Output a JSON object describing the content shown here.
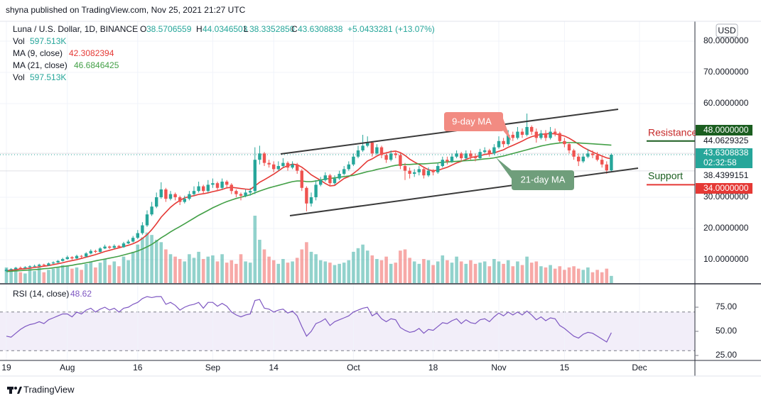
{
  "header": {
    "publisher": "shyna published on TradingView.com, Nov 25, 2021 21:27 UTC"
  },
  "footer": {
    "logo": "TradingView"
  },
  "chart_data": {
    "type": "candlestick",
    "title": "Luna / U.S. Dollar, 1D, BINANCE",
    "quote": [
      [
        "O",
        "38.5706559"
      ],
      [
        "H",
        "44.0346503"
      ],
      [
        "L",
        "38.3352850"
      ],
      [
        "C",
        "43.6308838"
      ]
    ],
    "change": "+5.0433281 (+13.07%)",
    "indicator_legend": [
      [
        "Vol",
        "597.513K"
      ],
      [
        "MA (9, close)",
        "42.3082394"
      ],
      [
        "MA (21, close)",
        "46.6846425"
      ],
      [
        "Vol",
        "597.513K"
      ]
    ],
    "currency": "USD",
    "up_color": "#26a69a",
    "down_color": "#ef5350",
    "grid": true,
    "xticks": [
      {
        "value": 0,
        "label": "19"
      },
      {
        "value": 13,
        "label": "Aug"
      },
      {
        "value": 28,
        "label": "16"
      },
      {
        "value": 44,
        "label": "Sep"
      },
      {
        "value": 57,
        "label": "14"
      },
      {
        "value": 74,
        "label": "Oct"
      },
      {
        "value": 91,
        "label": "18"
      },
      {
        "value": 105,
        "label": "Nov"
      },
      {
        "value": 119,
        "label": "15"
      },
      {
        "value": 135,
        "label": "Dec"
      }
    ],
    "ylim": [
      2.27,
      86.36
    ],
    "yticks": [
      {
        "value": 10,
        "label": "10.0000000"
      },
      {
        "value": 20,
        "label": "20.0000000"
      },
      {
        "value": 30,
        "label": "30.0000000"
      },
      {
        "value": 60,
        "label": "60.0000000"
      },
      {
        "value": 70,
        "label": "70.0000000"
      },
      {
        "value": 80,
        "label": "80.0000000"
      }
    ],
    "close": [
      6.8,
      7.0,
      7.4,
      7.3,
      7.6,
      7.9,
      8.0,
      8.4,
      8.2,
      8.8,
      9.1,
      9.6,
      10.2,
      10.8,
      10.4,
      11.2,
      11.0,
      12.0,
      12.8,
      12.5,
      13.6,
      14.2,
      13.8,
      14.4,
      14.0,
      15.2,
      15.8,
      17.0,
      18.5,
      21.0,
      24.5,
      27.0,
      30.0,
      32.5,
      29.5,
      31.0,
      30.0,
      28.5,
      29.5,
      31.0,
      32.0,
      33.5,
      32.0,
      34.0,
      34.5,
      33.0,
      35.0,
      34.0,
      32.0,
      31.0,
      30.5,
      31.5,
      32.0,
      42.0,
      44.0,
      41.0,
      40.5,
      39.0,
      40.0,
      41.0,
      39.5,
      40.5,
      38.5,
      33.0,
      28.0,
      30.0,
      34.0,
      35.5,
      37.0,
      34.5,
      36.0,
      37.5,
      39.0,
      40.5,
      43.0,
      45.0,
      46.5,
      47.5,
      44.0,
      46.0,
      43.5,
      42.0,
      44.0,
      43.5,
      40.0,
      38.5,
      37.5,
      38.0,
      39.0,
      37.0,
      38.5,
      38.0,
      40.0,
      42.0,
      41.5,
      43.0,
      44.0,
      42.5,
      44.0,
      43.0,
      42.5,
      44.5,
      45.0,
      44.0,
      46.0,
      48.0,
      47.0,
      50.0,
      49.0,
      51.0,
      50.0,
      52.5,
      51.0,
      49.0,
      50.5,
      49.0,
      51.0,
      50.5,
      48.0,
      47.0,
      45.0,
      43.0,
      41.5,
      43.0,
      44.0,
      43.5,
      42.0,
      40.5,
      38.6,
      43.6308838
    ],
    "high": [
      7.2,
      7.3,
      7.7,
      7.8,
      7.9,
      8.2,
      8.4,
      8.7,
      8.7,
      9.1,
      9.5,
      9.9,
      10.6,
      11.3,
      11.1,
      11.6,
      11.5,
      12.4,
      13.3,
      13.2,
      14.0,
      14.8,
      14.5,
      14.9,
      14.7,
      15.7,
      16.4,
      17.6,
      19.5,
      22.0,
      25.8,
      28.5,
      31.5,
      34.8,
      33.0,
      32.0,
      31.5,
      30.5,
      30.5,
      32.0,
      33.5,
      35.0,
      34.0,
      35.5,
      36.0,
      35.0,
      36.0,
      35.5,
      34.5,
      32.5,
      31.5,
      32.5,
      33.0,
      46.0,
      46.5,
      44.5,
      42.0,
      41.5,
      41.5,
      42.5,
      41.5,
      41.5,
      41.0,
      39.0,
      33.5,
      31.5,
      35.5,
      36.5,
      38.0,
      37.5,
      37.0,
      38.5,
      40.0,
      41.5,
      44.0,
      46.5,
      50.0,
      49.5,
      48.0,
      47.0,
      46.5,
      44.5,
      45.0,
      45.0,
      44.5,
      41.0,
      39.5,
      39.0,
      40.0,
      39.5,
      39.5,
      39.0,
      41.0,
      43.0,
      43.0,
      44.0,
      45.0,
      44.5,
      45.0,
      45.0,
      44.0,
      45.5,
      46.0,
      45.5,
      47.0,
      49.5,
      49.0,
      51.5,
      51.0,
      52.5,
      52.0,
      56.8,
      53.0,
      52.0,
      51.5,
      51.5,
      52.5,
      52.0,
      51.0,
      49.0,
      47.5,
      45.5,
      44.0,
      44.0,
      45.5,
      45.0,
      44.5,
      43.5,
      41.5,
      44.0346503
    ],
    "low": [
      6.3,
      6.6,
      6.8,
      7.0,
      7.1,
      7.4,
      7.7,
      7.8,
      7.9,
      8.0,
      8.6,
      8.9,
      9.4,
      10.0,
      10.0,
      10.2,
      10.6,
      10.8,
      11.7,
      12.1,
      12.3,
      13.4,
      13.4,
      13.5,
      13.6,
      13.8,
      15.0,
      15.5,
      16.6,
      18.0,
      20.5,
      24.0,
      26.5,
      29.5,
      28.5,
      29.0,
      29.0,
      27.5,
      28.0,
      29.0,
      30.5,
      31.5,
      31.0,
      31.5,
      33.0,
      32.0,
      32.5,
      33.0,
      31.0,
      30.0,
      29.0,
      30.0,
      30.5,
      31.0,
      40.5,
      40.0,
      39.5,
      38.0,
      38.5,
      39.5,
      38.5,
      39.0,
      37.5,
      32.0,
      25.5,
      27.0,
      29.0,
      33.5,
      35.0,
      33.5,
      34.0,
      35.5,
      37.0,
      38.5,
      40.0,
      42.5,
      44.5,
      46.0,
      43.0,
      43.5,
      42.5,
      41.0,
      41.5,
      42.5,
      39.0,
      35.5,
      36.0,
      36.5,
      37.0,
      36.0,
      36.5,
      37.0,
      37.5,
      39.5,
      40.5,
      41.0,
      42.5,
      41.5,
      42.0,
      42.0,
      41.5,
      42.0,
      44.0,
      43.0,
      43.5,
      45.5,
      46.0,
      46.5,
      48.0,
      48.5,
      49.0,
      49.5,
      50.0,
      47.5,
      48.5,
      48.0,
      48.5,
      49.5,
      47.5,
      46.0,
      44.0,
      42.0,
      40.0,
      41.0,
      42.5,
      42.5,
      41.5,
      39.5,
      37.5,
      38.335285
    ],
    "volume": [
      1300,
      1100,
      1200,
      900,
      800,
      1200,
      1000,
      1300,
      900,
      1100,
      1200,
      1300,
      1500,
      1400,
      1200,
      1300,
      1100,
      1600,
      1800,
      1300,
      1700,
      2000,
      1500,
      1800,
      1400,
      2200,
      1900,
      2600,
      3200,
      3800,
      4200,
      4000,
      3600,
      3400,
      2800,
      2400,
      2200,
      2000,
      1800,
      2400,
      2100,
      2600,
      2000,
      2200,
      2300,
      1800,
      2400,
      1700,
      1900,
      1600,
      2400,
      1800,
      1700,
      5600,
      3600,
      2800,
      2200,
      1900,
      1600,
      2000,
      1700,
      1800,
      2100,
      2800,
      3400,
      2600,
      2400,
      1900,
      1800,
      1700,
      1500,
      1600,
      1700,
      1900,
      2600,
      2900,
      3200,
      2700,
      2300,
      2000,
      1900,
      2200,
      1600,
      1700,
      2700,
      2800,
      2100,
      1800,
      1600,
      2000,
      1900,
      1500,
      1800,
      2300,
      1900,
      1700,
      2200,
      1800,
      1600,
      1900,
      1600,
      1700,
      1800,
      1400,
      2000,
      1800,
      1600,
      1900,
      1400,
      1800,
      1500,
      2200,
      1700,
      1800,
      1400,
      1300,
      1500,
      1200,
      1400,
      1100,
      1300,
      1400,
      1200,
      1100,
      1300,
      900,
      1100,
      900,
      1200,
      597.513
    ],
    "series": [
      {
        "name": "MA (9, close)",
        "color": "#e53935",
        "values": [
          6.5,
          6.6,
          6.8,
          7.0,
          7.1,
          7.3,
          7.5,
          7.7,
          7.9,
          8.1,
          8.4,
          8.7,
          9.0,
          9.4,
          9.7,
          10.0,
          10.4,
          10.8,
          11.2,
          11.6,
          12.1,
          12.6,
          13.0,
          13.4,
          13.8,
          14.2,
          14.6,
          15.1,
          15.8,
          16.8,
          18.0,
          19.6,
          21.5,
          23.6,
          25.2,
          26.8,
          28.0,
          29.0,
          29.8,
          30.2,
          30.5,
          30.9,
          31.1,
          31.4,
          31.8,
          32.1,
          32.5,
          33.0,
          33.2,
          33.0,
          32.8,
          32.6,
          32.5,
          33.6,
          34.8,
          35.6,
          36.5,
          37.4,
          38.4,
          39.5,
          40.1,
          40.6,
          40.4,
          39.6,
          38.5,
          37.2,
          36.3,
          35.4,
          34.4,
          33.6,
          33.8,
          34.9,
          36.0,
          36.6,
          37.6,
          38.8,
          40.2,
          41.6,
          42.3,
          43.2,
          43.9,
          44.2,
          44.6,
          44.8,
          44.3,
          43.4,
          42.2,
          41.3,
          40.5,
          39.6,
          38.8,
          38.5,
          38.6,
          39.1,
          39.6,
          40.3,
          41.0,
          41.5,
          42.1,
          42.7,
          43.0,
          43.3,
          43.7,
          43.9,
          44.2,
          44.7,
          45.2,
          46.0,
          46.6,
          47.3,
          48.0,
          48.8,
          49.4,
          49.8,
          50.1,
          50.3,
          50.4,
          50.3,
          50.0,
          49.6,
          48.9,
          48.0,
          47.0,
          46.0,
          45.2,
          44.5,
          43.8,
          43.2,
          42.6,
          42.3082394
        ]
      },
      {
        "name": "MA (21, close)",
        "color": "#43a047",
        "values": [
          6.2,
          6.3,
          6.4,
          6.5,
          6.6,
          6.7,
          6.8,
          6.9,
          7.1,
          7.2,
          7.4,
          7.6,
          7.8,
          8.0,
          8.2,
          8.5,
          8.7,
          9.0,
          9.3,
          9.6,
          9.9,
          10.2,
          10.5,
          10.8,
          11.1,
          11.5,
          11.9,
          12.3,
          12.8,
          13.4,
          14.1,
          14.9,
          15.9,
          17.0,
          17.9,
          18.9,
          19.8,
          20.6,
          21.5,
          22.4,
          23.3,
          24.2,
          25.0,
          25.8,
          26.6,
          27.3,
          28.0,
          28.6,
          29.1,
          29.6,
          30.0,
          30.4,
          30.8,
          31.4,
          32.0,
          32.5,
          33.0,
          33.4,
          33.8,
          34.2,
          34.6,
          35.0,
          35.2,
          35.2,
          35.0,
          35.0,
          35.2,
          35.5,
          35.8,
          36.0,
          36.2,
          36.4,
          36.6,
          36.8,
          37.0,
          37.4,
          37.8,
          38.2,
          38.5,
          38.9,
          39.2,
          39.5,
          39.9,
          40.2,
          40.4,
          40.5,
          40.5,
          40.6,
          40.7,
          40.7,
          40.8,
          40.9,
          41.0,
          41.2,
          41.3,
          41.4,
          41.5,
          41.6,
          41.7,
          41.8,
          41.9,
          42.1,
          42.3,
          42.4,
          42.6,
          42.9,
          43.2,
          43.6,
          44.0,
          44.4,
          44.8,
          45.2,
          45.6,
          46.0,
          46.4,
          46.7,
          47.0,
          47.2,
          47.4,
          47.5,
          47.5,
          47.5,
          47.4,
          47.3,
          47.2,
          47.1,
          47.0,
          46.9,
          46.8,
          46.6846425
        ]
      }
    ],
    "resistance": {
      "label": "Resistance",
      "value": 48,
      "value_label": "48.0000000"
    },
    "support": {
      "label": "Support",
      "value": 34,
      "value_label": "34.0000000"
    },
    "price_marks": [
      44.0629325,
      38.4399151
    ],
    "countdown": "02:32:58",
    "annotations": [
      "9-day MA",
      "21-day MA"
    ],
    "rsi": {
      "title": "RSI (14, close)",
      "value_label": "48.62",
      "color": "#7e57c2",
      "ylim": [
        19.85,
        97.8
      ],
      "yticks": [
        {
          "value": 25,
          "label": "25.00"
        },
        {
          "value": 50,
          "label": "50.00"
        },
        {
          "value": 75,
          "label": "75.00"
        }
      ],
      "levels": [
        70,
        30
      ],
      "values": [
        45,
        44,
        48,
        52,
        55,
        57,
        58,
        60,
        58,
        62,
        64,
        66,
        68,
        68,
        65,
        70,
        68,
        72,
        74,
        70,
        73,
        75,
        72,
        74,
        70,
        74,
        75,
        78,
        80,
        84,
        86,
        85,
        86,
        86,
        78,
        80,
        77,
        72,
        75,
        77,
        78,
        80,
        74,
        80,
        80,
        76,
        79,
        76,
        70,
        67,
        65,
        67,
        68,
        82,
        83,
        74,
        73,
        70,
        72,
        73,
        69,
        71,
        66,
        55,
        45,
        50,
        58,
        60,
        63,
        56,
        60,
        62,
        64,
        66,
        70,
        72,
        74,
        75,
        66,
        69,
        63,
        60,
        63,
        62,
        54,
        51,
        49,
        50,
        53,
        48,
        52,
        51,
        55,
        59,
        58,
        61,
        63,
        58,
        62,
        59,
        58,
        62,
        63,
        60,
        65,
        69,
        66,
        70,
        67,
        70,
        67,
        71,
        67,
        62,
        65,
        61,
        64,
        63,
        56,
        53,
        49,
        45,
        43,
        47,
        49,
        48,
        45,
        42,
        39,
        48.62
      ]
    }
  }
}
